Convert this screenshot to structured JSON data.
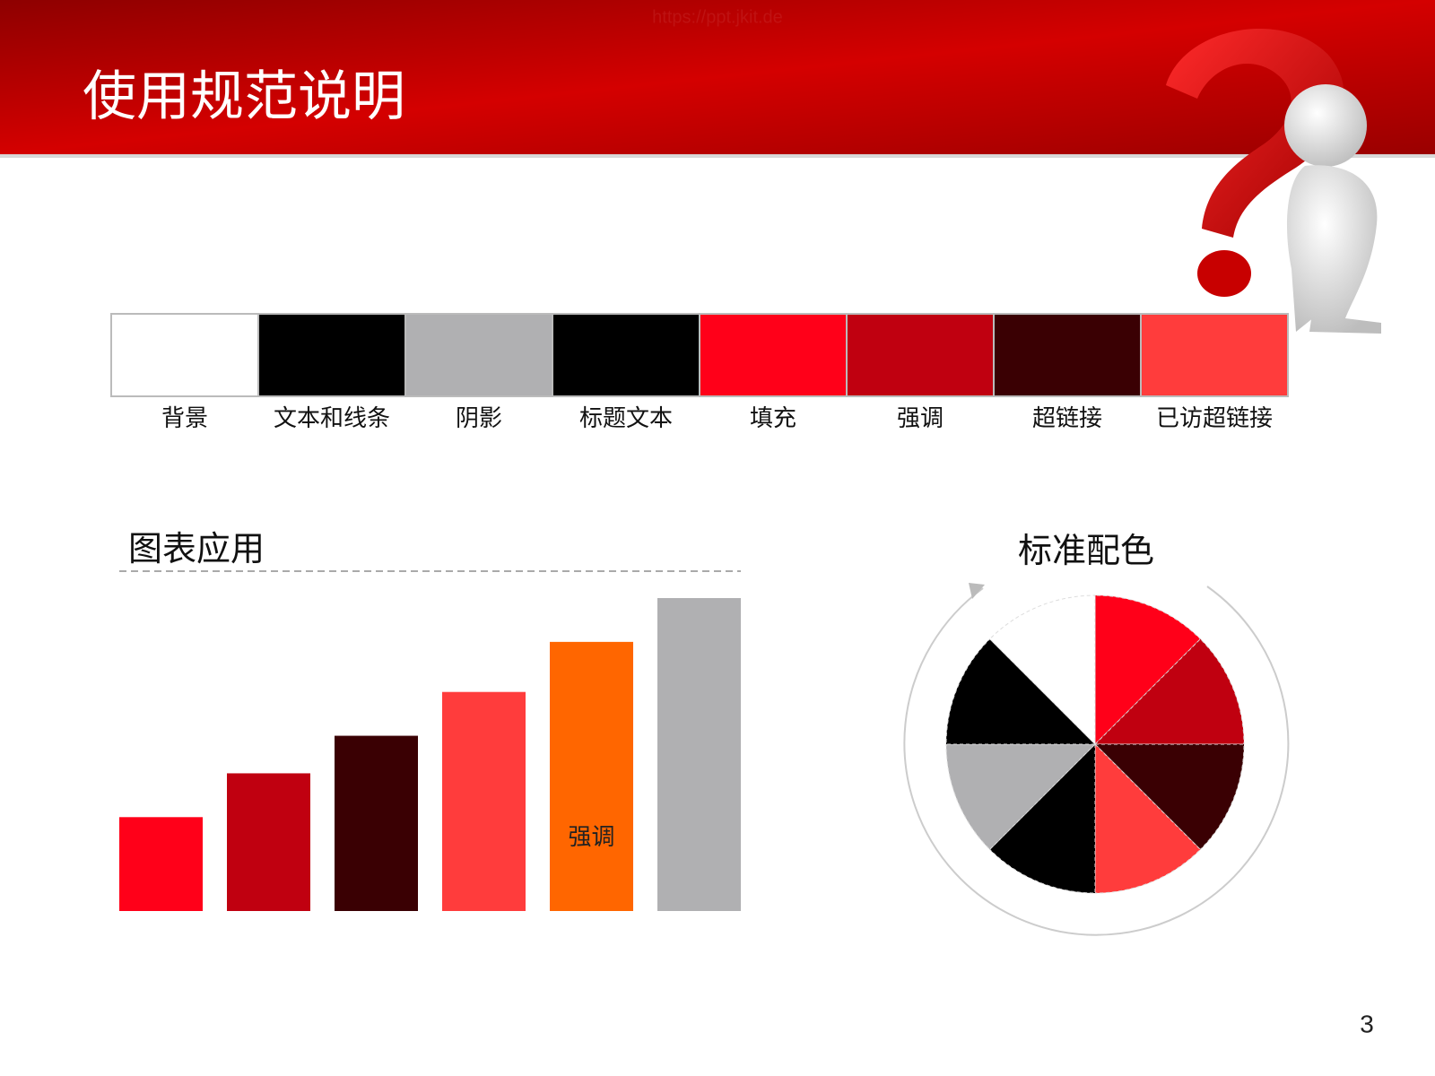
{
  "header": {
    "title": "使用规范说明",
    "watermark": "https://ppt.jkit.de"
  },
  "swatches": [
    {
      "label": "背景",
      "color": "#ffffff"
    },
    {
      "label": "文本和线条",
      "color": "#000000"
    },
    {
      "label": "阴影",
      "color": "#b0b0b2"
    },
    {
      "label": "标题文本",
      "color": "#000000"
    },
    {
      "label": "填充",
      "color": "#ff0019"
    },
    {
      "label": "强调",
      "color": "#c00010"
    },
    {
      "label": "超链接",
      "color": "#3a0003"
    },
    {
      "label": "已访超链接",
      "color": "#ff3c3c"
    }
  ],
  "page_number": "3",
  "chart_data": [
    {
      "type": "bar",
      "title": "图表应用",
      "categories": [
        null,
        null,
        null,
        null,
        "强调",
        null
      ],
      "values": [
        30,
        44,
        56,
        70,
        86,
        100
      ],
      "colors": [
        "#ff0019",
        "#c00010",
        "#3a0003",
        "#ff3c3c",
        "#ff6600",
        "#b0b0b2"
      ],
      "ylim": [
        0,
        100
      ]
    },
    {
      "type": "pie",
      "title": "标准配色",
      "values": [
        12.5,
        12.5,
        12.5,
        12.5,
        12.5,
        12.5,
        12.5,
        12.5
      ],
      "colors": [
        "#ff0019",
        "#c00010",
        "#3a0003",
        "#ff3c3c",
        "#000000",
        "#b0b0b2",
        "#000000",
        "#ffffff"
      ]
    }
  ]
}
